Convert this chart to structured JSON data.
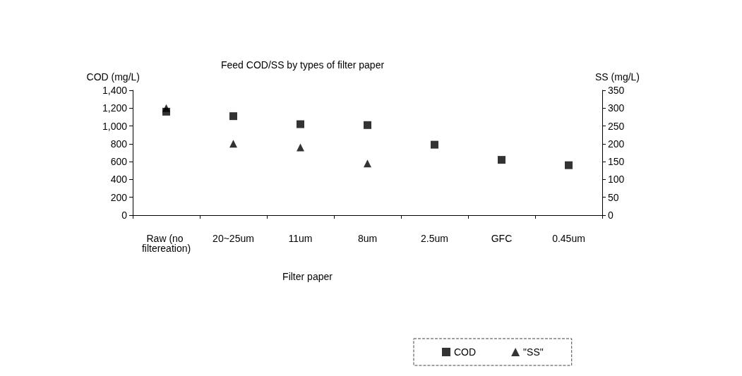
{
  "chart_data": {
    "type": "scatter",
    "title": "Feed COD/SS by types of filter paper",
    "xlabel": "Filter paper",
    "ylabel": "COD (mg/L)",
    "y2label": "SS (mg/L)",
    "categories": [
      "Raw (no filtereation)",
      "20~25um",
      "11um",
      "8um",
      "2.5um",
      "GFC",
      "0.45um"
    ],
    "series": [
      {
        "name": "COD",
        "color": "#000000",
        "marker": "square",
        "values": [
          1160,
          1110,
          1020,
          1010,
          790,
          620,
          560
        ]
      },
      {
        "name": "\"SS\"",
        "color": "#000000",
        "marker": "triangle",
        "axis": "y2",
        "values": [
          300,
          200,
          190,
          145,
          null,
          null,
          null
        ]
      }
    ],
    "ylim": [
      0,
      1400
    ],
    "yticks": [
      0,
      200,
      400,
      600,
      800,
      {
        "value": 1000,
        "label": "1,000"
      },
      {
        "value": 1200,
        "label": "1,200"
      },
      {
        "value": 1400,
        "label": "1,400"
      }
    ],
    "y2lim": [
      0,
      350
    ],
    "y2ticks": [
      0,
      50,
      100,
      150,
      200,
      250,
      300,
      350
    ],
    "grid": false,
    "legend": "bottom"
  }
}
